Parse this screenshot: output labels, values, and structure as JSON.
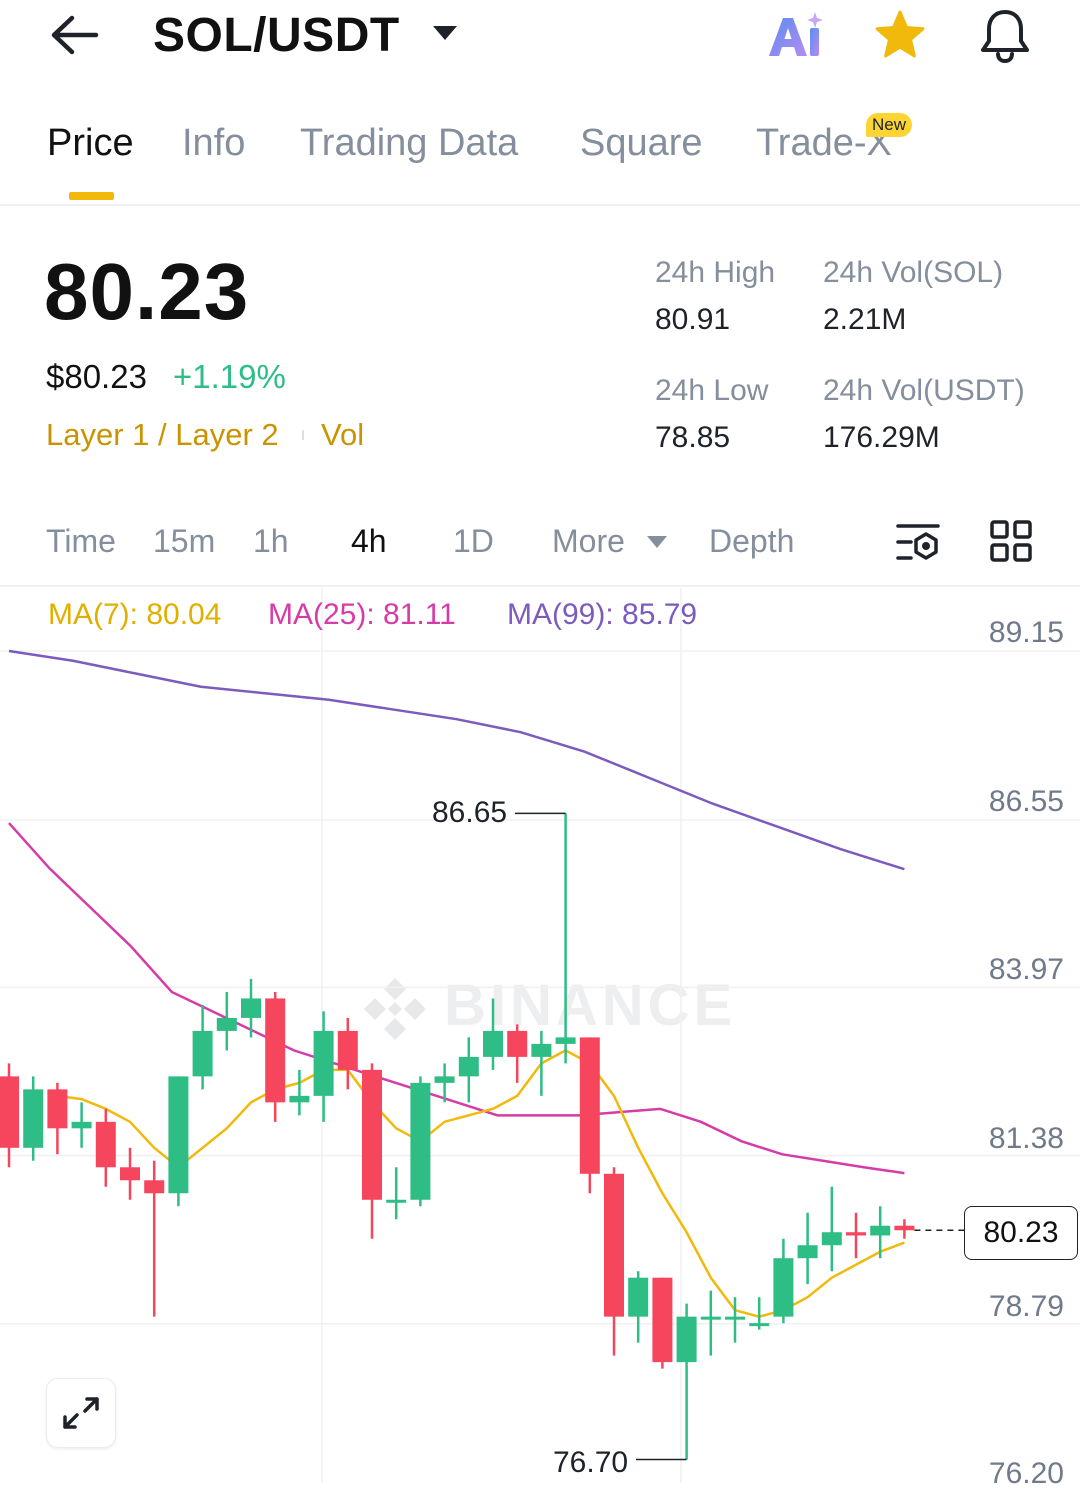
{
  "header": {
    "pair": "SOL/USDT",
    "icons": [
      "back-arrow-icon",
      "dropdown-caret-icon",
      "ai-icon",
      "star-icon",
      "bell-icon"
    ],
    "star_color": "#f0b90b"
  },
  "tabs": {
    "items": [
      "Price",
      "Info",
      "Trading Data",
      "Square",
      "Trade-X"
    ],
    "active": "Price",
    "new_badge": "New"
  },
  "price": {
    "last": "80.23",
    "usd": "$80.23",
    "change": "+1.19%",
    "change_color": "#2ebd85",
    "tag_category": "Layer 1 / Layer 2",
    "tag_vol": "Vol"
  },
  "stats": {
    "high_label": "24h High",
    "high_value": "80.91",
    "vol_sol_label": "24h Vol(SOL)",
    "vol_sol_value": "2.21M",
    "low_label": "24h Low",
    "low_value": "78.85",
    "vol_usdt_label": "24h Vol(USDT)",
    "vol_usdt_value": "176.29M"
  },
  "intervals": {
    "items": [
      "Time",
      "15m",
      "1h",
      "4h",
      "1D",
      "More",
      "Depth"
    ],
    "active": "4h"
  },
  "chart_data": {
    "type": "candlestick",
    "ma_legend": {
      "ma7": "MA(7): 80.04",
      "ma25": "MA(25): 81.11",
      "ma99": "MA(99): 85.79"
    },
    "ma_colors": {
      "ma7": "#f0b90b",
      "ma25": "#d63ca8",
      "ma99": "#7d5bbe"
    },
    "up_color": "#2ebd85",
    "down_color": "#f6465d",
    "y_ticks": [
      "89.15",
      "86.55",
      "83.97",
      "81.38",
      "78.79",
      "76.20"
    ],
    "y_tick_values": [
      89.15,
      86.55,
      83.97,
      81.38,
      78.79,
      76.2
    ],
    "last_price": "80.23",
    "last_price_value": 80.23,
    "max_label": "86.65",
    "min_label": "76.70",
    "watermark": "BINANCE",
    "candles": [
      [
        82.6,
        81.5,
        82.8,
        81.2
      ],
      [
        81.5,
        82.4,
        82.6,
        81.3
      ],
      [
        82.4,
        81.8,
        82.5,
        81.4
      ],
      [
        81.8,
        81.9,
        82.2,
        81.5
      ],
      [
        81.9,
        81.2,
        82.1,
        80.9
      ],
      [
        81.2,
        81.0,
        81.5,
        80.7
      ],
      [
        81.0,
        80.8,
        81.3,
        78.9
      ],
      [
        80.8,
        82.6,
        82.6,
        80.6
      ],
      [
        82.6,
        83.3,
        83.7,
        82.4
      ],
      [
        83.3,
        83.5,
        83.9,
        83.0
      ],
      [
        83.5,
        83.8,
        84.1,
        83.2
      ],
      [
        83.8,
        82.2,
        83.9,
        81.9
      ],
      [
        82.2,
        82.3,
        82.7,
        82.0
      ],
      [
        82.3,
        83.3,
        83.6,
        81.9
      ],
      [
        83.3,
        82.7,
        83.5,
        82.4
      ],
      [
        82.7,
        80.7,
        82.8,
        80.1
      ],
      [
        80.7,
        80.7,
        81.2,
        80.4
      ],
      [
        80.7,
        82.5,
        82.6,
        80.6
      ],
      [
        82.5,
        82.6,
        82.8,
        82.2
      ],
      [
        82.6,
        82.9,
        83.2,
        82.2
      ],
      [
        82.9,
        83.3,
        83.8,
        82.7
      ],
      [
        83.3,
        82.9,
        83.4,
        82.5
      ],
      [
        82.9,
        83.1,
        83.3,
        82.3
      ],
      [
        83.1,
        83.2,
        86.65,
        82.8
      ],
      [
        83.2,
        81.1,
        83.2,
        80.8
      ],
      [
        81.1,
        78.9,
        81.2,
        78.3
      ],
      [
        78.9,
        79.5,
        79.6,
        78.5
      ],
      [
        79.5,
        78.2,
        79.5,
        78.1
      ],
      [
        78.2,
        78.9,
        79.1,
        76.7
      ],
      [
        78.9,
        78.9,
        79.3,
        78.3
      ],
      [
        78.9,
        78.9,
        79.2,
        78.5
      ],
      [
        78.8,
        78.8,
        79.2,
        78.7
      ],
      [
        78.9,
        79.8,
        80.1,
        78.8
      ],
      [
        79.8,
        80.0,
        80.5,
        79.4
      ],
      [
        80.0,
        80.2,
        80.9,
        79.6
      ],
      [
        80.2,
        80.15,
        80.5,
        79.8
      ],
      [
        80.15,
        80.3,
        80.6,
        79.8
      ],
      [
        80.3,
        80.23,
        80.4,
        80.1
      ]
    ],
    "ma7": [
      82.3,
      82.25,
      82.1,
      81.9,
      81.5,
      81.2,
      81.5,
      81.8,
      82.2,
      82.4,
      82.5,
      82.7,
      82.7,
      82.2,
      81.8,
      81.6,
      81.9,
      82.0,
      82.1,
      82.3,
      82.8,
      83.0,
      82.8,
      82.3,
      81.5,
      80.8,
      80.2,
      79.5,
      79.0,
      78.9,
      79.0,
      79.2,
      79.5,
      79.7,
      79.9,
      80.04
    ],
    "ma25": [
      86.5,
      85.8,
      85.2,
      84.6,
      83.9,
      83.6,
      83.3,
      83.0,
      82.8,
      82.6,
      82.4,
      82.2,
      82.0,
      82.0,
      82.0,
      82.05,
      82.1,
      81.9,
      81.6,
      81.4,
      81.3,
      81.2,
      81.11
    ],
    "ma99": [
      89.15,
      89.0,
      88.8,
      88.6,
      88.5,
      88.4,
      88.25,
      88.1,
      87.9,
      87.6,
      87.2,
      86.8,
      86.45,
      86.1,
      85.79
    ]
  }
}
